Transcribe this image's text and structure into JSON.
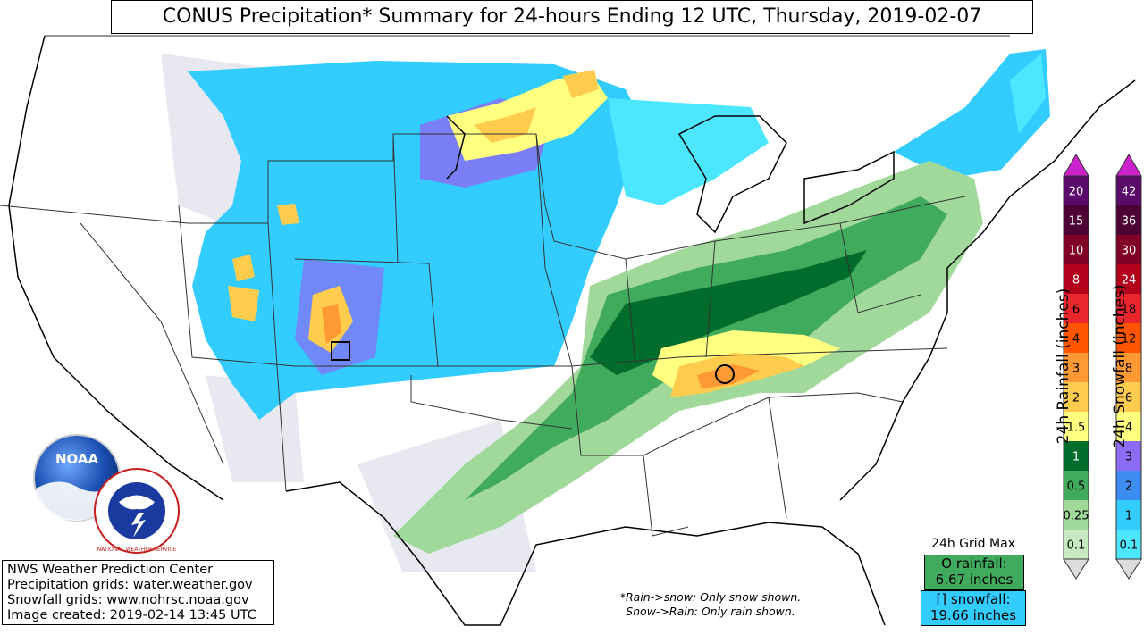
{
  "title": "CONUS Precipitation* Summary for 24-hours Ending 12 UTC, Thursday, 2019-02-07",
  "info": {
    "line1": "NWS Weather Prediction Center",
    "line2": "Precipitation grids: water.weather.gov",
    "line3": "Snowfall grids: www.nohrsc.noaa.gov",
    "line4": "Image created: 2019-02-14 13:45 UTC"
  },
  "note": {
    "line1": "*Rain->snow: Only snow shown.",
    "line2": "Snow->Rain: Only rain shown."
  },
  "grid_max": {
    "title": "24h Grid Max",
    "rain_line1": "O rainfall:",
    "rain_line2": "6.67 inches",
    "snow_line1": "[] snowfall:",
    "snow_line2": "19.66 inches"
  },
  "rain_colorbar": {
    "label": "24h Rainfall (inches)",
    "ticks": [
      "0.1",
      "0.25",
      "0.5",
      "1",
      "1.5",
      "2",
      "3",
      "4",
      "6",
      "8",
      "10",
      "15",
      "20"
    ],
    "colors": [
      "#c7e9c0",
      "#a1d99b",
      "#41ab5d",
      "#006d2c",
      "#ffff80",
      "#ffcc4d",
      "#ff9933",
      "#ff5500",
      "#e8262b",
      "#b3001b",
      "#800026",
      "#4d0033",
      "#5a0a6a"
    ],
    "extend_color": "#cc22cc"
  },
  "snow_colorbar": {
    "label": "24h Snowfall (inches)",
    "ticks": [
      "0.1",
      "1",
      "2",
      "3",
      "4",
      "6",
      "8",
      "12",
      "18",
      "24",
      "30",
      "36",
      "42"
    ],
    "colors": [
      "#4de6ff",
      "#33ccff",
      "#3d8cf0",
      "#8c6cf5",
      "#ffff80",
      "#ffcc4d",
      "#ff9933",
      "#ff5500",
      "#e8262b",
      "#b3001b",
      "#800026",
      "#4d0033",
      "#5a0a6a"
    ],
    "extend_color": "#cc22cc"
  },
  "logos": {
    "noaa": "NOAA",
    "nws": "NATIONAL WEATHER SERVICE"
  }
}
